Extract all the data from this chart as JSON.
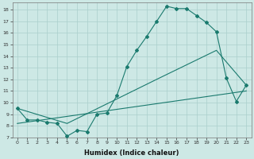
{
  "xlabel": "Humidex (Indice chaleur)",
  "bg_color": "#cde8e5",
  "grid_color": "#aacfcc",
  "line_color": "#1a7a6e",
  "xlim": [
    -0.5,
    23.5
  ],
  "ylim": [
    7,
    18.6
  ],
  "xticks": [
    0,
    1,
    2,
    3,
    4,
    5,
    6,
    7,
    8,
    9,
    10,
    11,
    12,
    13,
    14,
    15,
    16,
    17,
    18,
    19,
    20,
    21,
    22,
    23
  ],
  "yticks": [
    7,
    8,
    9,
    10,
    11,
    12,
    13,
    14,
    15,
    16,
    17,
    18
  ],
  "curve1_x": [
    0,
    1,
    2,
    3,
    4,
    5,
    6,
    7,
    8,
    9,
    10,
    11,
    12,
    13,
    14,
    15,
    16,
    17,
    18,
    19,
    20,
    21,
    22,
    23
  ],
  "curve1_y": [
    9.5,
    8.5,
    8.5,
    8.3,
    8.2,
    7.1,
    7.6,
    7.5,
    9.0,
    9.1,
    10.6,
    13.1,
    14.5,
    15.7,
    17.0,
    18.3,
    18.1,
    18.1,
    17.5,
    16.9,
    16.1,
    12.1,
    10.1,
    11.5
  ],
  "curve2_x": [
    0,
    5,
    14,
    20,
    23
  ],
  "curve2_y": [
    9.5,
    8.2,
    12.0,
    14.5,
    11.5
  ],
  "curve3_x": [
    0,
    23
  ],
  "curve3_y": [
    8.2,
    11.0
  ],
  "xlabel_fontsize": 6,
  "tick_fontsize": 4.5
}
